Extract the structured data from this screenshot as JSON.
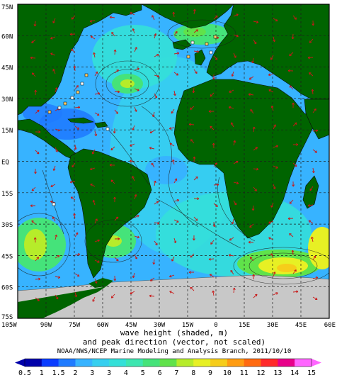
{
  "title_lines": [
    "wave height (shaded, m)",
    "and peak direction (vector, not scaled)"
  ],
  "credit": "NOAA/NWS/NCEP Marine Modeling and Analysis Branch, 2011/10/10",
  "map": {
    "lon_range": [
      -105,
      60
    ],
    "lat_range": [
      -75,
      75
    ],
    "lon_ticks": [
      {
        "value": -105,
        "label": "105W"
      },
      {
        "value": -90,
        "label": "90W"
      },
      {
        "value": -75,
        "label": "75W"
      },
      {
        "value": -60,
        "label": "60W"
      },
      {
        "value": -45,
        "label": "45W"
      },
      {
        "value": -30,
        "label": "30W"
      },
      {
        "value": -15,
        "label": "15W"
      },
      {
        "value": 0,
        "label": "0"
      },
      {
        "value": 15,
        "label": "15E"
      },
      {
        "value": 30,
        "label": "30E"
      },
      {
        "value": 45,
        "label": "45E"
      },
      {
        "value": 60,
        "label": "60E"
      }
    ],
    "lat_ticks": [
      {
        "value": 75,
        "label": "75N"
      },
      {
        "value": 60,
        "label": "60N"
      },
      {
        "value": 45,
        "label": "45N"
      },
      {
        "value": 30,
        "label": "30N"
      },
      {
        "value": 15,
        "label": "15N"
      },
      {
        "value": 0,
        "label": "EQ"
      },
      {
        "value": -15,
        "label": "15S"
      },
      {
        "value": -30,
        "label": "30S"
      },
      {
        "value": -45,
        "label": "45S"
      },
      {
        "value": -60,
        "label": "60S"
      },
      {
        "value": -75,
        "label": "75S"
      }
    ]
  },
  "colorbar": {
    "labels": [
      "0.5",
      "1",
      "1.5",
      "2",
      "3",
      "3",
      "4",
      "5",
      "6",
      "7",
      "8",
      "9",
      "10",
      "11",
      "12",
      "13",
      "14",
      "15"
    ],
    "colors": [
      "#0000aa",
      "#0a3cff",
      "#1f7bff",
      "#37b3ff",
      "#36cfef",
      "#34e0d8",
      "#3de6b0",
      "#45e37a",
      "#60e24a",
      "#b6ec2a",
      "#e7f024",
      "#f6cd1a",
      "#ff9c12",
      "#ff6a10",
      "#ff2a2a",
      "#e8008a",
      "#ff66ff"
    ]
  },
  "colors": {
    "land": "#006400",
    "ice": "#c8c8c8",
    "grid": "#1c1c1c",
    "contour": "#1a1a1a",
    "arrow": "#c81818"
  }
}
